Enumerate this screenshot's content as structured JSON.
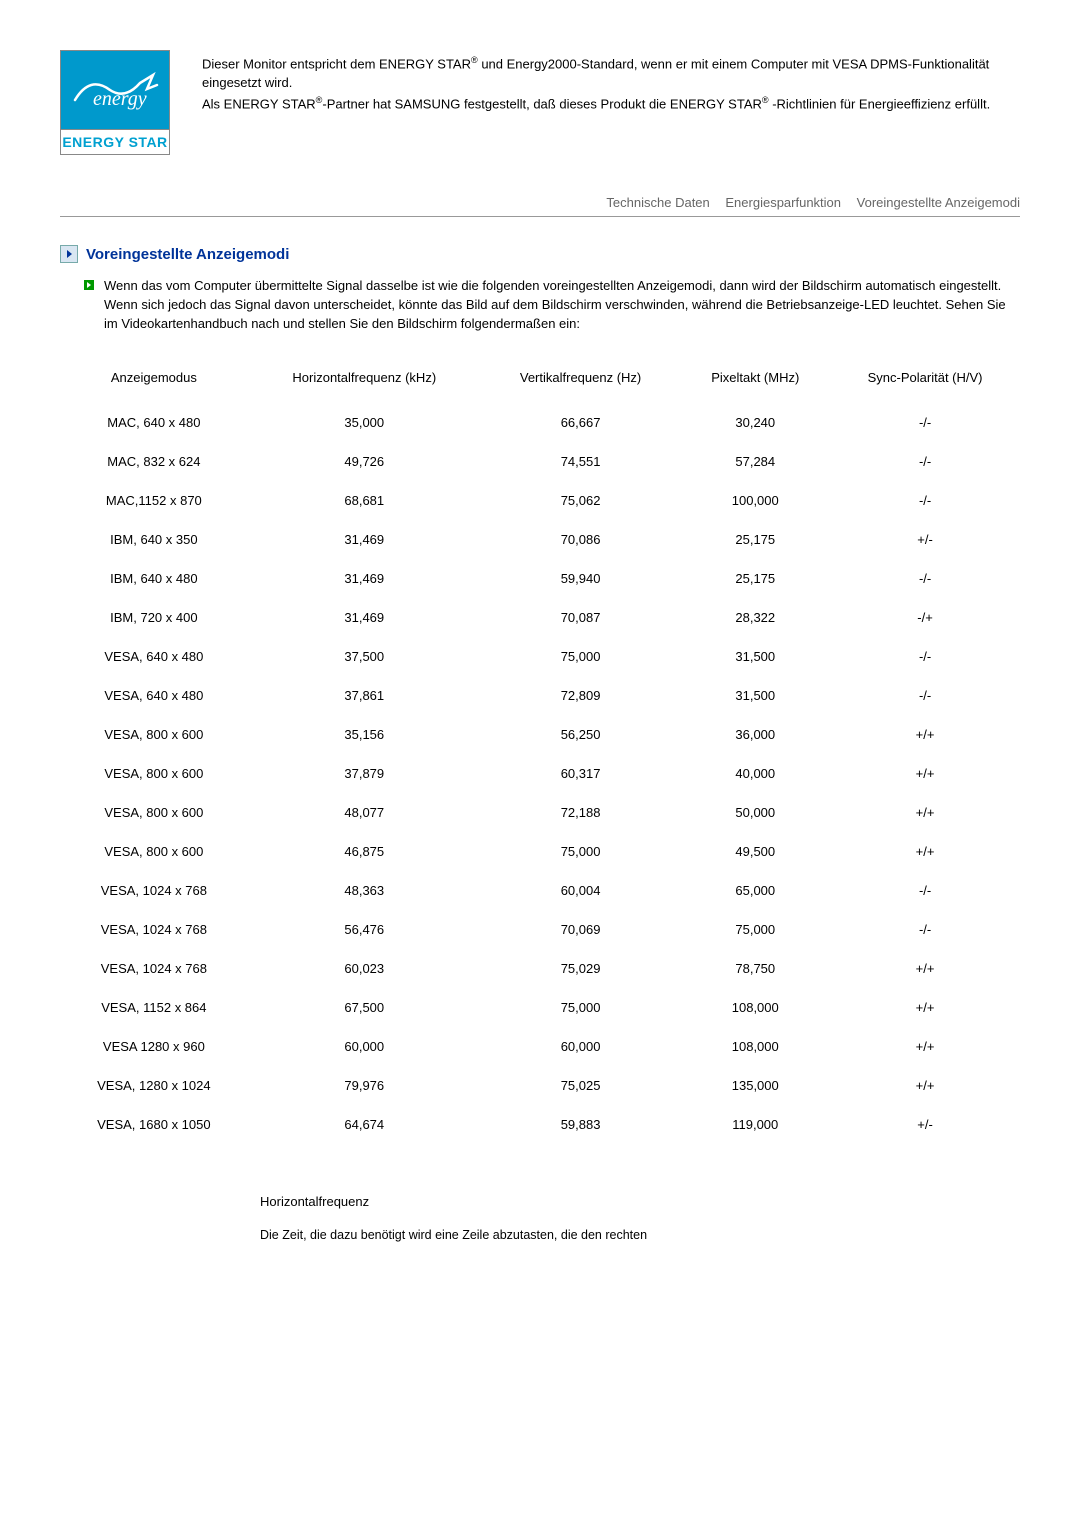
{
  "logo": {
    "script_text": "energy",
    "bottom_text": "ENERGY STAR",
    "top_bg": "#0099cc",
    "bottom_color": "#00a0d0"
  },
  "intro": {
    "line1_a": "Dieser Monitor entspricht dem ENERGY STAR",
    "line1_b": " und Energy2000-Standard, wenn er mit einem Computer mit VESA DPMS-Funktionalität eingesetzt wird.",
    "line2_a": "Als ENERGY STAR",
    "line2_b": "-Partner hat SAMSUNG festgestellt, daß dieses Produkt die ENERGY STAR",
    "line2_c": " -Richtlinien für Energieeffizienz erfüllt.",
    "reg": "®"
  },
  "nav": {
    "item1": "Technische Daten",
    "item2": "Energiesparfunktion",
    "item3": "Voreingestellte Anzeigemodi"
  },
  "section": {
    "title": "Voreingestellte Anzeigemodi",
    "bullet": "Wenn das vom Computer übermittelte Signal dasselbe ist wie die folgenden voreingestellten Anzeigemodi, dann wird der Bildschirm automatisch eingestellt. Wenn sich jedoch das Signal davon unterscheidet, könnte das Bild auf dem Bildschirm verschwinden, während die Betriebsanzeige-LED leuchtet. Sehen Sie im Videokartenhandbuch nach und stellen Sie den Bildschirm folgendermaßen ein:"
  },
  "table": {
    "headers": {
      "mode": "Anzeigemodus",
      "hfreq": "Horizontalfrequenz (kHz)",
      "vfreq": "Vertikalfrequenz (Hz)",
      "pixel": "Pixeltakt (MHz)",
      "sync": "Sync-Polarität (H/V)"
    },
    "rows": [
      {
        "mode": "MAC, 640 x 480",
        "h": "35,000",
        "v": "66,667",
        "p": "30,240",
        "s": "-/-"
      },
      {
        "mode": "MAC, 832 x 624",
        "h": "49,726",
        "v": "74,551",
        "p": "57,284",
        "s": "-/-"
      },
      {
        "mode": "MAC,1152 x 870",
        "h": "68,681",
        "v": "75,062",
        "p": "100,000",
        "s": "-/-"
      },
      {
        "mode": "IBM, 640 x 350",
        "h": "31,469",
        "v": "70,086",
        "p": "25,175",
        "s": "+/-"
      },
      {
        "mode": "IBM, 640 x 480",
        "h": "31,469",
        "v": "59,940",
        "p": "25,175",
        "s": "-/-"
      },
      {
        "mode": "IBM, 720 x 400",
        "h": "31,469",
        "v": "70,087",
        "p": "28,322",
        "s": "-/+"
      },
      {
        "mode": "VESA, 640 x 480",
        "h": "37,500",
        "v": "75,000",
        "p": "31,500",
        "s": "-/-"
      },
      {
        "mode": "VESA, 640 x 480",
        "h": "37,861",
        "v": "72,809",
        "p": "31,500",
        "s": "-/-"
      },
      {
        "mode": "VESA, 800 x 600",
        "h": "35,156",
        "v": "56,250",
        "p": "36,000",
        "s": "+/+"
      },
      {
        "mode": "VESA, 800 x 600",
        "h": "37,879",
        "v": "60,317",
        "p": "40,000",
        "s": "+/+"
      },
      {
        "mode": "VESA, 800 x 600",
        "h": "48,077",
        "v": "72,188",
        "p": "50,000",
        "s": "+/+"
      },
      {
        "mode": "VESA, 800 x 600",
        "h": "46,875",
        "v": "75,000",
        "p": "49,500",
        "s": "+/+"
      },
      {
        "mode": "VESA, 1024 x 768",
        "h": "48,363",
        "v": "60,004",
        "p": "65,000",
        "s": "-/-"
      },
      {
        "mode": "VESA, 1024 x 768",
        "h": "56,476",
        "v": "70,069",
        "p": "75,000",
        "s": "-/-"
      },
      {
        "mode": "VESA, 1024 x 768",
        "h": "60,023",
        "v": "75,029",
        "p": "78,750",
        "s": "+/+"
      },
      {
        "mode": "VESA, 1152 x 864",
        "h": "67,500",
        "v": "75,000",
        "p": "108,000",
        "s": "+/+"
      },
      {
        "mode": "VESA 1280 x 960",
        "h": "60,000",
        "v": "60,000",
        "p": "108,000",
        "s": "+/+"
      },
      {
        "mode": "VESA, 1280 x 1024",
        "h": "79,976",
        "v": "75,025",
        "p": "135,000",
        "s": "+/+"
      },
      {
        "mode": "VESA, 1680 x 1050",
        "h": "64,674",
        "v": "59,883",
        "p": "119,000",
        "s": "+/-"
      }
    ]
  },
  "footnote": {
    "title": "Horizontalfrequenz",
    "body": "Die Zeit, die dazu benötigt wird eine Zeile abzutasten, die den rechten"
  }
}
